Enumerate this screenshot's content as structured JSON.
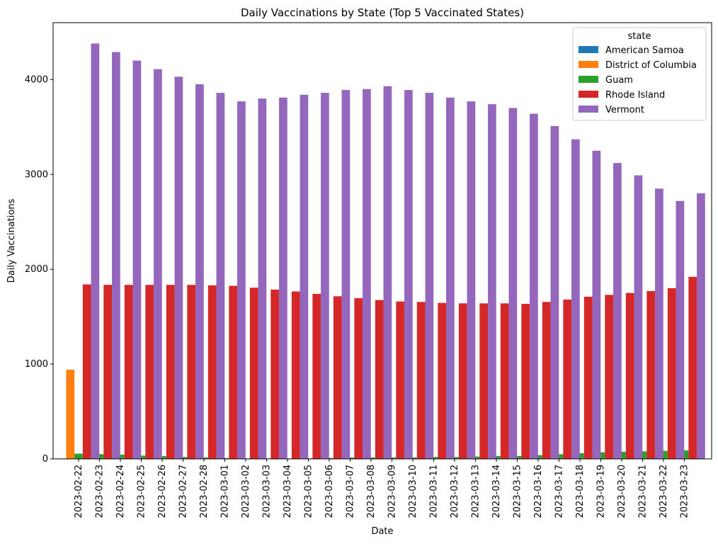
{
  "chart_data": {
    "type": "bar",
    "title": "Daily Vaccinations by State (Top 5 Vaccinated States)",
    "x_label": "Date",
    "y_label": "Daily Vaccinations",
    "legend_title": "state",
    "legend_position": "upper right",
    "categories": [
      "2023-02-22",
      "2023-02-23",
      "2023-02-24",
      "2023-02-25",
      "2023-02-26",
      "2023-02-27",
      "2023-02-28",
      "2023-03-01",
      "2023-03-02",
      "2023-03-03",
      "2023-03-04",
      "2023-03-05",
      "2023-03-06",
      "2023-03-07",
      "2023-03-08",
      "2023-03-09",
      "2023-03-10",
      "2023-03-11",
      "2023-03-12",
      "2023-03-13",
      "2023-03-14",
      "2023-03-15",
      "2023-03-16",
      "2023-03-17",
      "2023-03-18",
      "2023-03-19",
      "2023-03-20",
      "2023-03-21",
      "2023-03-22",
      "2023-03-23"
    ],
    "series": [
      {
        "name": "American Samoa",
        "color": "#1f77b4",
        "values": [
          5,
          null,
          null,
          null,
          null,
          null,
          null,
          null,
          null,
          null,
          null,
          null,
          null,
          null,
          null,
          null,
          null,
          null,
          null,
          null,
          null,
          null,
          null,
          null,
          null,
          null,
          null,
          null,
          null,
          null
        ]
      },
      {
        "name": "District of Columbia",
        "color": "#ff7f0e",
        "values": [
          940,
          null,
          null,
          null,
          null,
          null,
          null,
          null,
          null,
          null,
          null,
          null,
          null,
          null,
          null,
          null,
          null,
          null,
          null,
          null,
          null,
          null,
          null,
          null,
          null,
          null,
          null,
          null,
          null,
          null
        ]
      },
      {
        "name": "Guam",
        "color": "#2ca02c",
        "values": [
          55,
          50,
          45,
          35,
          30,
          20,
          15,
          10,
          5,
          5,
          5,
          5,
          10,
          15,
          15,
          15,
          15,
          20,
          20,
          25,
          30,
          30,
          40,
          50,
          60,
          70,
          75,
          80,
          85,
          90
        ]
      },
      {
        "name": "Rhode Island",
        "color": "#d62728",
        "values": [
          1840,
          1835,
          1835,
          1835,
          1835,
          1835,
          1830,
          1825,
          1805,
          1785,
          1765,
          1740,
          1715,
          1695,
          1675,
          1660,
          1655,
          1645,
          1640,
          1640,
          1640,
          1635,
          1655,
          1680,
          1710,
          1730,
          1750,
          1770,
          1800,
          1920
        ]
      },
      {
        "name": "Vermont",
        "color": "#9467bd",
        "values": [
          4380,
          4290,
          4200,
          4110,
          4030,
          3950,
          3860,
          3770,
          3800,
          3810,
          3840,
          3860,
          3890,
          3900,
          3930,
          3890,
          3860,
          3810,
          3770,
          3740,
          3700,
          3640,
          3510,
          3370,
          3250,
          3120,
          2990,
          2850,
          2720,
          2800
        ]
      }
    ],
    "ylim": [
      0,
      4600
    ],
    "yticks": [
      0,
      1000,
      2000,
      3000,
      4000
    ],
    "grid": false
  }
}
